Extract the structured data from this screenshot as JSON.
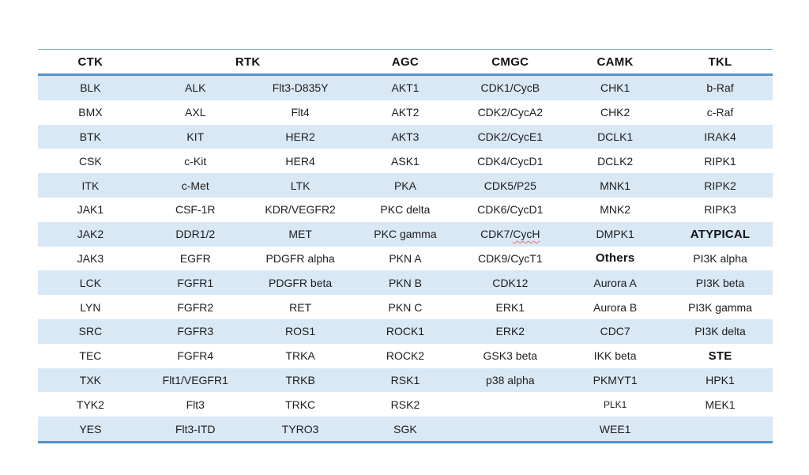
{
  "colors": {
    "row_alt_fill": "#d9e8f5",
    "border_top_thin": "#7fafda",
    "border_strong": "#5493c9",
    "text": "#1d1d1d",
    "spellcheck_squiggle": "#e57070",
    "page_background": "#ffffff"
  },
  "table": {
    "headers": [
      {
        "label": "CTK",
        "span": 1
      },
      {
        "label": "RTK",
        "span": 2
      },
      {
        "label": "AGC",
        "span": 1
      },
      {
        "label": "CMGC",
        "span": 1
      },
      {
        "label": "CAMK",
        "span": 1
      },
      {
        "label": "TKL",
        "span": 1
      }
    ],
    "rows": [
      [
        "BLK",
        "ALK",
        "Flt3-D835Y",
        "AKT1",
        "CDK1/CycB",
        "CHK1",
        "b-Raf"
      ],
      [
        "BMX",
        "AXL",
        "Flt4",
        "AKT2",
        "CDK2/CycA2",
        "CHK2",
        "c-Raf"
      ],
      [
        "BTK",
        "KIT",
        "HER2",
        "AKT3",
        "CDK2/CycE1",
        "DCLK1",
        "IRAK4"
      ],
      [
        "CSK",
        "c-Kit",
        "HER4",
        "ASK1",
        "CDK4/CycD1",
        "DCLK2",
        "RIPK1"
      ],
      [
        "ITK",
        "c-Met",
        "LTK",
        "PKA",
        "CDK5/P25",
        "MNK1",
        "RIPK2"
      ],
      [
        "JAK1",
        "CSF-1R",
        "KDR/VEGFR2",
        "PKC delta",
        "CDK6/CycD1",
        "MNK2",
        "RIPK3"
      ],
      [
        "JAK2",
        "DDR1/2",
        "MET",
        "PKC gamma",
        {
          "text": "CDK7/CycH",
          "squiggle": "CycH"
        },
        "DMPK1",
        {
          "text": "ATYPICAL",
          "bold": true
        }
      ],
      [
        "JAK3",
        "EGFR",
        "PDGFR alpha",
        "PKN A",
        "CDK9/CycT1",
        {
          "text": "Others",
          "bold": true
        },
        "PI3K alpha"
      ],
      [
        "LCK",
        "FGFR1",
        "PDGFR beta",
        "PKN B",
        "CDK12",
        "Aurora A",
        "PI3K beta"
      ],
      [
        "LYN",
        "FGFR2",
        "RET",
        "PKN C",
        "ERK1",
        "Aurora B",
        "PI3K gamma"
      ],
      [
        "SRC",
        "FGFR3",
        "ROS1",
        "ROCK1",
        "ERK2",
        "CDC7",
        "PI3K delta"
      ],
      [
        "TEC",
        "FGFR4",
        "TRKA",
        "ROCK2",
        "GSK3 beta",
        "IKK beta",
        {
          "text": "STE",
          "bold": true
        }
      ],
      [
        "TXK",
        "Flt1/VEGFR1",
        "TRKB",
        "RSK1",
        "p38 alpha",
        "PKMYT1",
        "HPK1"
      ],
      [
        "TYK2",
        "Flt3",
        "TRKC",
        "RSK2",
        "",
        {
          "text": "PLK1",
          "small": true
        },
        "MEK1"
      ],
      [
        "YES",
        "Flt3-ITD",
        "TYRO3",
        "SGK",
        "",
        "WEE1",
        ""
      ]
    ]
  }
}
